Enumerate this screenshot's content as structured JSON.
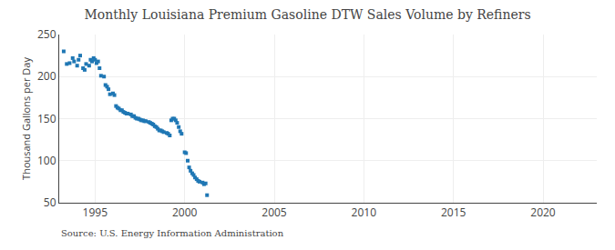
{
  "chart_data": {
    "type": "scatter",
    "title": "Monthly Louisiana Premium Gasoline DTW Sales Volume by Refiners",
    "ylabel": "Thousand Gallons per Day",
    "annotations": [
      "Source: U.S. Energy Information Administration"
    ],
    "marker": "square",
    "grid": true,
    "xlim": [
      1993,
      2023
    ],
    "ylim": [
      50,
      250
    ],
    "xticks": [
      1995,
      2000,
      2005,
      2010,
      2015,
      2020
    ],
    "yticks": [
      50,
      100,
      150,
      200,
      250
    ],
    "x": [
      1993.25,
      1993.42,
      1993.58,
      1993.75,
      1993.83,
      1994.0,
      1994.08,
      1994.17,
      1994.33,
      1994.42,
      1994.5,
      1994.67,
      1994.75,
      1994.83,
      1994.92,
      1995.0,
      1995.08,
      1995.17,
      1995.25,
      1995.33,
      1995.5,
      1995.58,
      1995.67,
      1995.75,
      1995.83,
      1996.0,
      1996.08,
      1996.17,
      1996.25,
      1996.33,
      1996.42,
      1996.5,
      1996.58,
      1996.67,
      1996.75,
      1996.83,
      1997.0,
      1997.08,
      1997.17,
      1997.25,
      1997.33,
      1997.42,
      1997.5,
      1997.58,
      1997.67,
      1997.75,
      1997.83,
      1998.0,
      1998.08,
      1998.17,
      1998.25,
      1998.33,
      1998.42,
      1998.5,
      1998.58,
      1998.67,
      1998.75,
      1998.83,
      1999.0,
      1999.08,
      1999.17,
      1999.25,
      1999.33,
      1999.42,
      1999.5,
      1999.58,
      1999.67,
      1999.75,
      1999.83,
      2000.0,
      2000.08,
      2000.17,
      2000.25,
      2000.33,
      2000.42,
      2000.5,
      2000.58,
      2000.67,
      2000.75,
      2000.83,
      2001.0,
      2001.08,
      2001.17,
      2001.25
    ],
    "values": [
      230,
      215,
      216,
      222,
      218,
      213,
      220,
      225,
      210,
      208,
      215,
      213,
      220,
      218,
      222,
      220,
      216,
      218,
      210,
      201,
      200,
      190,
      188,
      185,
      179,
      180,
      178,
      165,
      163,
      162,
      160,
      160,
      158,
      157,
      156,
      156,
      155,
      153,
      153,
      151,
      150,
      150,
      149,
      148,
      148,
      147,
      147,
      146,
      145,
      144,
      143,
      141,
      140,
      138,
      136,
      136,
      135,
      134,
      133,
      132,
      130,
      148,
      150,
      150,
      148,
      145,
      140,
      135,
      132,
      110,
      109,
      100,
      92,
      88,
      85,
      83,
      80,
      78,
      76,
      75,
      74,
      72,
      73,
      59
    ]
  }
}
